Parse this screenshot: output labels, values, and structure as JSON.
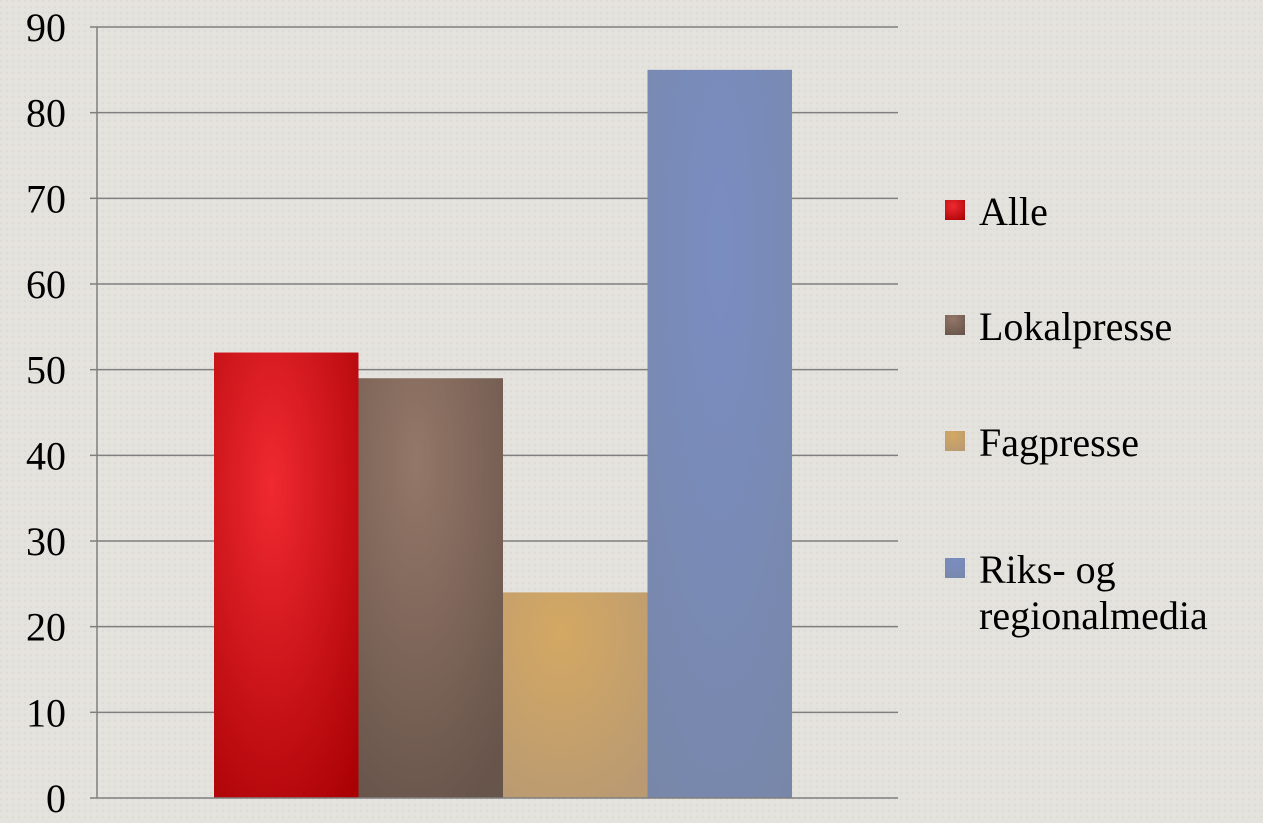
{
  "chart_data": {
    "type": "bar",
    "title": "",
    "xlabel": "",
    "ylabel": "",
    "ylim": [
      0,
      90
    ],
    "yticks": [
      0,
      10,
      20,
      30,
      40,
      50,
      60,
      70,
      80,
      90
    ],
    "grid": true,
    "legend_position": "right",
    "series": [
      {
        "name": "Alle",
        "value": 52,
        "color": "#c8161b"
      },
      {
        "name": "Lokalpresse",
        "value": 49,
        "color": "#7e6659"
      },
      {
        "name": "Fagpresse",
        "value": 24,
        "color": "#c9a46a"
      },
      {
        "name": "Riks- og regionalmedia",
        "value": 85,
        "color": "#7b8ab3"
      }
    ]
  }
}
